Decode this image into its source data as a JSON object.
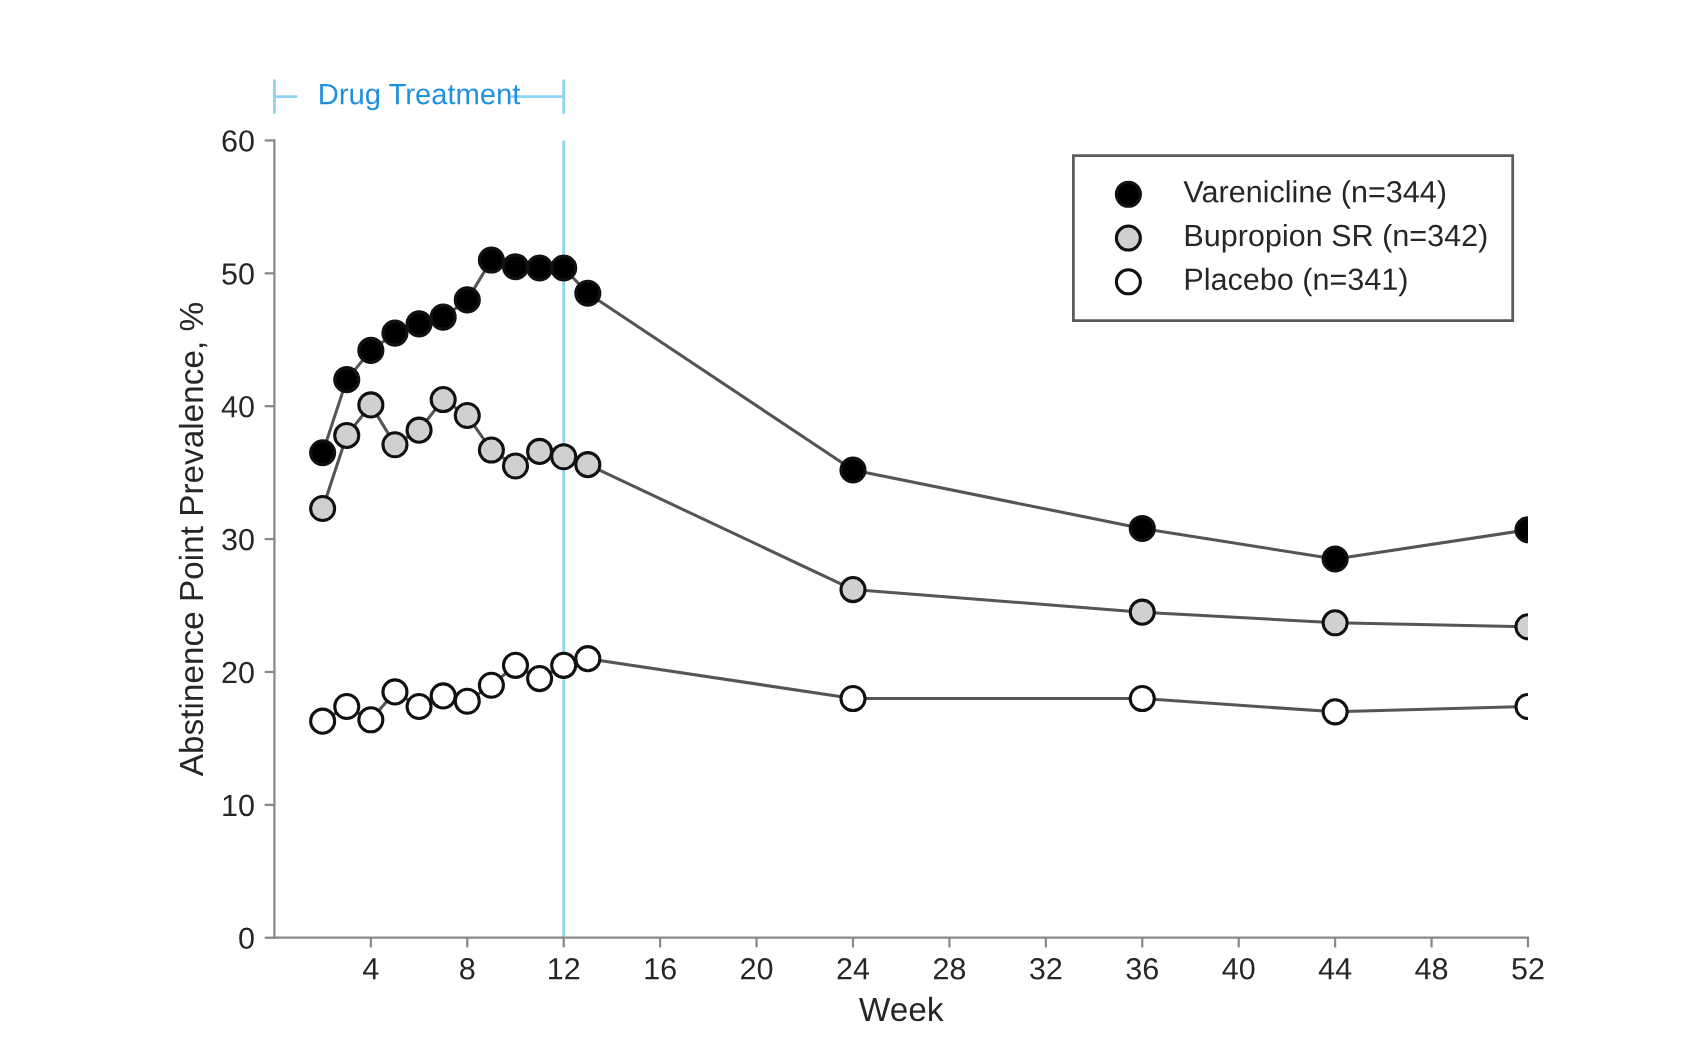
{
  "chart_data": {
    "type": "line",
    "xlabel": "Week",
    "ylabel": "Abstinence Point Prevalence, %",
    "xlim": [
      0,
      52
    ],
    "xticks": [
      4,
      8,
      12,
      16,
      20,
      24,
      28,
      32,
      36,
      40,
      44,
      48,
      52
    ],
    "ylim": [
      0,
      60
    ],
    "yticks": [
      0,
      10,
      20,
      30,
      40,
      50,
      60
    ],
    "grid": false,
    "legend": "top right",
    "marker": "circle",
    "line_style": "solid",
    "x": [
      2,
      3,
      4,
      5,
      6,
      7,
      8,
      9,
      10,
      11,
      12,
      13,
      24,
      36,
      44,
      52
    ],
    "series": [
      {
        "name": "Varenicline (n=344)",
        "color": "#000000",
        "values": [
          36.5,
          42,
          44.2,
          45.5,
          46.2,
          46.7,
          48,
          51,
          50.5,
          50.4,
          50.4,
          48.5,
          35.2,
          30.8,
          28.5,
          30.7
        ]
      },
      {
        "name": "Bupropion SR (n=342)",
        "color": "#d0d0d0",
        "values": [
          32.3,
          37.8,
          40.1,
          37.1,
          38.2,
          40.5,
          39.3,
          36.7,
          35.5,
          36.6,
          36.2,
          35.6,
          26.2,
          24.5,
          23.7,
          23.4
        ]
      },
      {
        "name": "Placebo (n=341)",
        "color": "#ffffff",
        "values": [
          16.3,
          17.4,
          16.4,
          18.5,
          17.4,
          18.2,
          17.8,
          19,
          20.5,
          19.5,
          20.5,
          21,
          18,
          18,
          17,
          17.4
        ]
      }
    ],
    "ref_lines": [
      {
        "axis": "x",
        "value": 12,
        "label": "Drug Treatment",
        "color": "#8fd3f4"
      }
    ]
  }
}
